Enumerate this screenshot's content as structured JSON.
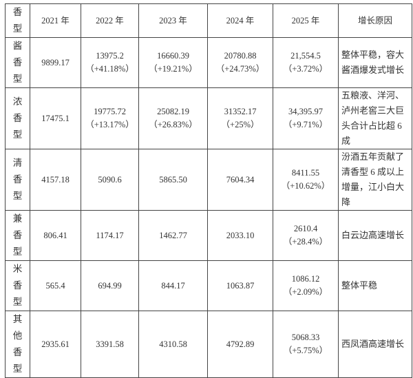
{
  "header": [
    "香\n型",
    "2021 年",
    "2022 年",
    "2023 年",
    "2024 年",
    "2025 年",
    "增长原因"
  ],
  "rows": [
    {
      "type": "酱\n香\n型",
      "v2021": "9899.17",
      "v2022": "13975.2",
      "g2022": "（+41.18%）",
      "v2023": "16660.39",
      "g2023": "（+19.21%）",
      "v2024": "20780.88",
      "g2024": "（+24.73%）",
      "v2025": "21,554.5",
      "g2025": "（+3.72%）",
      "reason": "整体平稳，容大酱酒爆发式增长"
    },
    {
      "type": "浓\n香\n型",
      "v2021": "17475.1",
      "v2022": "19775.72",
      "g2022": "（+13.17%）",
      "v2023": "25082.19",
      "g2023": "（+26.83%）",
      "v2024": "31352.17",
      "g2024": "（+25%）",
      "v2025": "34,395.97",
      "g2025": "（+9.71%）",
      "reason": "五粮液、洋河、泸州老窖三大巨头合计占比超 6 成"
    },
    {
      "type": "清\n香\n型",
      "v2021": "4157.18",
      "v2022": "5090.6",
      "g2022": "",
      "v2023": "5865.50",
      "g2023": "",
      "v2024": "7604.34",
      "g2024": "",
      "v2025": "8411.55",
      "g2025": "（+10.62%）",
      "reason": "汾酒五年贡献了清香型 6 成以上增量，江小白大降"
    },
    {
      "type": "兼\n香\n型",
      "v2021": "806.41",
      "v2022": "1174.17",
      "g2022": "",
      "v2023": "1462.77",
      "g2023": "",
      "v2024": "2033.10",
      "g2024": "",
      "v2025": "2610.4",
      "g2025": "（+28.4%）",
      "reason": "白云边高速增长"
    },
    {
      "type": "米\n香\n型",
      "v2021": "565.4",
      "v2022": "694.99",
      "g2022": "",
      "v2023": "844.17",
      "g2023": "",
      "v2024": "1063.87",
      "g2024": "",
      "v2025": "1086.12",
      "g2025": "（+2.09%）",
      "reason": "整体平稳"
    },
    {
      "type": "其\n他\n香\n型",
      "v2021": "2935.61",
      "v2022": "3391.58",
      "g2022": "",
      "v2023": "4310.58",
      "g2023": "",
      "v2024": "4792.89",
      "g2024": "",
      "v2025": "5068.33",
      "g2025": "（+5.75%）",
      "reason": "西凤酒高速增长"
    }
  ]
}
